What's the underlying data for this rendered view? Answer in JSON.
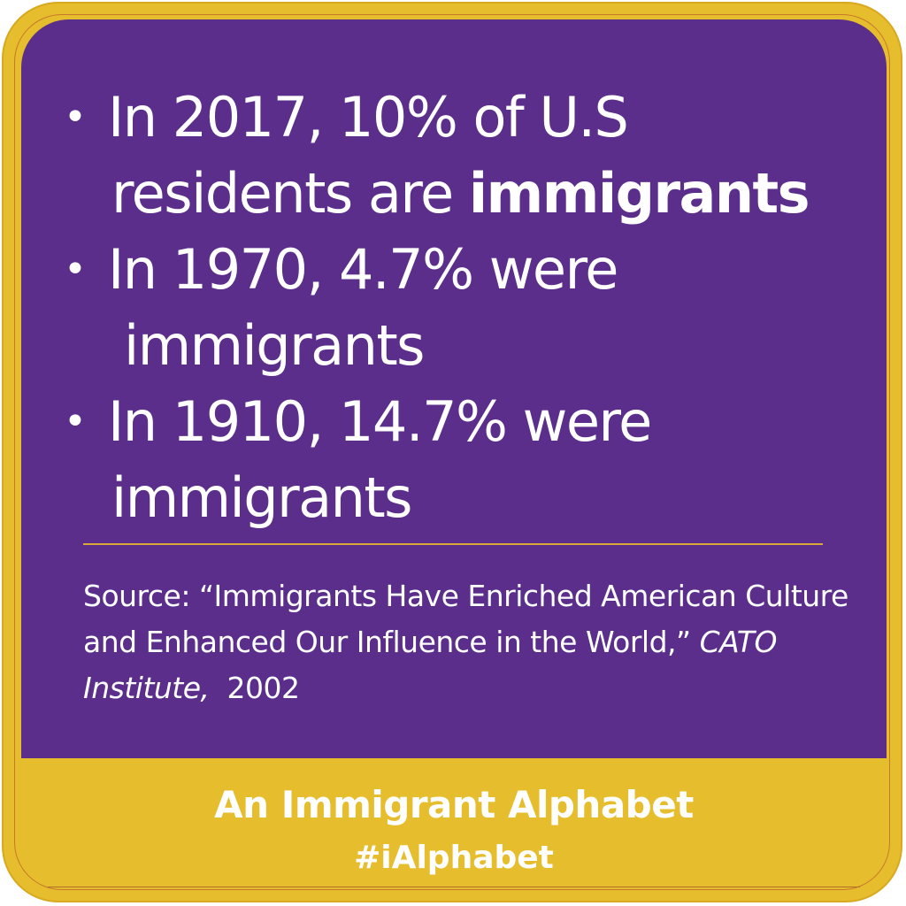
{
  "facts": [
    {
      "bullet": "•",
      "line1": "In 2017, 10% of U.S",
      "line2_plain": "residents are ",
      "line2_bold": "immigrants"
    },
    {
      "bullet": "•",
      "line1": "In 1970, 4.7% were",
      "line2_plain": "immigrants",
      "line2_bold": ""
    },
    {
      "bullet": "•",
      "line1": "In 1910, 14.7% were",
      "line2_plain": "immigrants",
      "line2_bold": ""
    }
  ],
  "source": {
    "prefix": "Source: “Immigrants Have Enriched American Culture and Enhanced Our Influence in the World,” ",
    "publication": "CATO Institute,",
    "year": "  2002"
  },
  "footer": {
    "title": "An Immigrant Alphabet",
    "hashtag": "#iAlphabet"
  },
  "colors": {
    "panel": "#5b2e8b",
    "frame": "#e6bd2c",
    "text": "#ffffff"
  }
}
